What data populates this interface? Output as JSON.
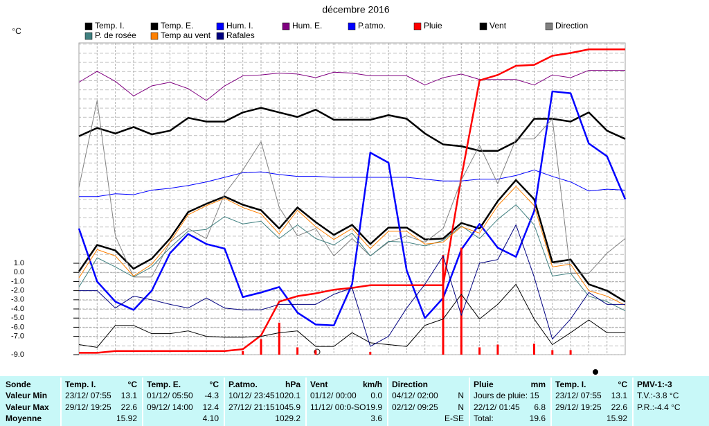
{
  "chart_data": {
    "type": "line",
    "title": "décembre 2016",
    "y_label": "°C",
    "categories": [
      null,
      null,
      null,
      null,
      null,
      null,
      null,
      null,
      null,
      null,
      null,
      null,
      null,
      null,
      null,
      null,
      null,
      null,
      null,
      null,
      null,
      null,
      null,
      null,
      null,
      null,
      null,
      null,
      null,
      null,
      null
    ],
    "ylim": [
      -9,
      25.1
    ],
    "yticks": [
      {
        "value": 1,
        "label": "1.0"
      },
      {
        "value": 0,
        "label": "0.0"
      },
      {
        "value": -1,
        "label": "-1.0"
      },
      {
        "value": -2,
        "label": "-2.0"
      },
      {
        "value": -3,
        "label": "-3.0"
      },
      {
        "value": -4,
        "label": "-4.0"
      },
      {
        "value": -5,
        "label": "-5.0"
      },
      {
        "value": -6,
        "label": "-6.0"
      },
      {
        "value": -7,
        "label": "-7.0"
      },
      {
        "value": -9,
        "label": "-9.0"
      }
    ],
    "grid": true,
    "series": [
      {
        "name": "Temp. I.",
        "color": "#000000",
        "values": [
          14.9,
          15.8,
          15.2,
          15.9,
          15.1,
          15.5,
          16.9,
          16.5,
          16.5,
          17.5,
          18.0,
          17.5,
          17.0,
          17.8,
          16.7,
          16.7,
          16.7,
          17.2,
          16.8,
          15.2,
          14.0,
          13.8,
          13.3,
          13.3,
          14.3,
          16.8,
          16.8,
          16.5,
          17.5,
          15.5,
          14.6
        ]
      },
      {
        "name": "Temp. E.",
        "color": "#000000",
        "values": [
          0.1,
          3.0,
          2.4,
          0.4,
          1.5,
          3.7,
          6.6,
          7.5,
          8.3,
          7.4,
          6.8,
          4.8,
          7.1,
          5.5,
          4.1,
          5.2,
          3.1,
          4.9,
          4.9,
          3.6,
          3.7,
          5.4,
          4.8,
          7.8,
          10.1,
          8.0,
          1.1,
          1.4,
          -1.3,
          -2.0,
          -3.2
        ]
      },
      {
        "name": "Hum. I.",
        "color": "#0000ff",
        "values": [
          8.3,
          8.3,
          8.6,
          8.5,
          9.0,
          9.2,
          9.5,
          9.9,
          10.4,
          10.9,
          11.0,
          10.7,
          10.5,
          10.5,
          10.4,
          10.4,
          10.4,
          10.4,
          10.4,
          10.2,
          10.0,
          10.0,
          10.2,
          10.2,
          10.6,
          11.2,
          10.5,
          9.9,
          8.9,
          9.1,
          9.0
        ]
      },
      {
        "name": "Hum. E.",
        "color": "#800080",
        "values": [
          20.8,
          22.0,
          20.9,
          19.3,
          20.4,
          20.8,
          20.1,
          18.8,
          20.4,
          21.5,
          21.6,
          21.8,
          21.7,
          21.3,
          21.9,
          21.8,
          21.5,
          21.5,
          21.5,
          20.5,
          21.3,
          21.7,
          21.1,
          21.1,
          21.1,
          20.5,
          21.6,
          21.3,
          22.1,
          22.1,
          22.1
        ]
      },
      {
        "name": "P.atmo.",
        "color": "#0000ff",
        "values": [
          4.8,
          -1.0,
          -3.2,
          -4.1,
          -2.0,
          2.1,
          4.2,
          3.1,
          2.6,
          -2.7,
          -2.2,
          -1.6,
          -4.4,
          -5.7,
          -5.8,
          -1.3,
          13.1,
          12.0,
          0.2,
          -5.0,
          -2.8,
          2.5,
          5.3,
          2.7,
          1.7,
          6.7,
          19.8,
          19.6,
          14.1,
          12.7,
          8.0
        ]
      },
      {
        "name": "Pluie",
        "color": "#ff0000",
        "values": [
          -8.8,
          -8.8,
          -8.6,
          -8.6,
          -8.6,
          -8.6,
          -8.6,
          -8.6,
          -8.6,
          -8.4,
          -6.9,
          -3.2,
          -2.6,
          -2.3,
          -1.9,
          -1.7,
          -1.4,
          -1.4,
          -1.4,
          -1.4,
          -1.4,
          10.4,
          21.0,
          21.6,
          22.6,
          22.7,
          23.7,
          24.0,
          24.4,
          24.4,
          24.4
        ],
        "bars": [
          null,
          null,
          null,
          null,
          null,
          null,
          null,
          null,
          null,
          -8.6,
          -7.3,
          -5.5,
          -8.2,
          -8.5,
          null,
          null,
          -8.7,
          null,
          null,
          null,
          1.9,
          2.7,
          -8.2,
          -7.9,
          null,
          -7.8,
          -8.5,
          -8.5,
          null,
          null,
          null
        ]
      },
      {
        "name": "Vent",
        "color": "#000000",
        "values": [
          -7.9,
          -8.2,
          -5.8,
          -5.8,
          -6.7,
          -6.7,
          -6.4,
          -7.0,
          -7.1,
          -7.1,
          -7.0,
          -6.6,
          -6.4,
          -8.1,
          -8.1,
          -6.6,
          -7.7,
          -7.9,
          -8.1,
          -5.8,
          -5.1,
          -2.4,
          -5.1,
          -3.5,
          -1.3,
          -5.1,
          -7.9,
          -6.6,
          -5.2,
          -6.6,
          -6.6
        ]
      },
      {
        "name": "Direction",
        "color": "#808080",
        "values": [
          9.3,
          18.8,
          4.0,
          -0.5,
          -0.5,
          3.3,
          4.8,
          3.7,
          8.6,
          11.2,
          14.3,
          7.1,
          4.0,
          4.8,
          1.8,
          3.7,
          1.8,
          3.3,
          4.0,
          3.3,
          4.8,
          10.1,
          13.9,
          9.7,
          14.6,
          14.6,
          16.8,
          -0.1,
          -0.1,
          2.1,
          3.7
        ]
      },
      {
        "name": "P. de rosée",
        "color": "#408080",
        "values": [
          -1.6,
          1.6,
          0.6,
          -0.5,
          0.6,
          2.7,
          4.5,
          4.7,
          6.1,
          5.3,
          5.6,
          3.7,
          5.2,
          3.7,
          3.0,
          4.3,
          1.8,
          3.4,
          3.3,
          2.9,
          3.5,
          5.1,
          3.7,
          5.8,
          7.4,
          5.2,
          -0.4,
          -0.1,
          -2.6,
          -3.2,
          -4.2
        ]
      },
      {
        "name": "Temp au vent",
        "color": "#ff8000",
        "values": [
          -0.6,
          2.5,
          1.8,
          -0.4,
          0.9,
          3.3,
          6.3,
          7.3,
          8.1,
          7.1,
          6.4,
          4.2,
          6.8,
          5.0,
          3.6,
          4.8,
          2.6,
          4.5,
          4.5,
          3.1,
          3.3,
          5.0,
          4.3,
          7.3,
          9.4,
          7.3,
          0.6,
          0.9,
          -2.0,
          -2.6,
          -3.6
        ]
      },
      {
        "name": "Rafales",
        "color": "#000080",
        "values": [
          -2.0,
          -2.0,
          -3.9,
          -2.6,
          -3.0,
          -3.5,
          -3.9,
          -2.8,
          -3.9,
          -4.1,
          -4.1,
          -3.5,
          -3.5,
          -3.5,
          -2.4,
          -1.7,
          -8.1,
          -7.0,
          -3.9,
          -1.3,
          1.8,
          -4.7,
          1.0,
          1.4,
          5.2,
          -0.5,
          -7.3,
          -5.1,
          -2.2,
          -3.5,
          -3.5
        ]
      }
    ]
  },
  "table": {
    "row_labels": [
      "Sonde",
      "Valeur Min",
      "Valeur Max",
      "Moyenne"
    ],
    "groups": [
      {
        "title": "Temp. I.",
        "unit": "°C",
        "rows": [
          {
            "left": "23/12/ 07:55",
            "right": "13.1"
          },
          {
            "left": "29/12/ 19:25",
            "right": "22.6"
          },
          {
            "right": "15.92"
          }
        ]
      },
      {
        "title": "Temp. E.",
        "unit": "°C",
        "rows": [
          {
            "left": "01/12/ 05:50",
            "right": "-4.3"
          },
          {
            "left": "09/12/ 14:00",
            "right": "12.4"
          },
          {
            "right": "4.10"
          }
        ]
      },
      {
        "title": "P.atmo.",
        "unit": "hPa",
        "rows": [
          {
            "left": "10/12/ 23:45",
            "right": "1020.1"
          },
          {
            "left": "27/12/ 21:15",
            "right": "1045.9"
          },
          {
            "right": "1029.2"
          }
        ]
      },
      {
        "title": "Vent",
        "unit": "km/h",
        "rows": [
          {
            "left": "01/12/ 00:00",
            "right": "0.0"
          },
          {
            "left": "11/12/ 00:0-SO",
            "right": "19.9"
          },
          {
            "right": "3.6"
          }
        ]
      },
      {
        "title": "Direction",
        "rows": [
          {
            "left": "04/12/ 02:00",
            "right": "N"
          },
          {
            "left": "02/12/ 09:25",
            "right": "N"
          },
          {
            "right": "E-SE"
          }
        ]
      },
      {
        "title": "Pluie",
        "unit": "mm",
        "rows": [
          {
            "left": "Jours de pluie: 15"
          },
          {
            "left": "22/12/ 01:45",
            "right": "6.8"
          },
          {
            "left": "Total:",
            "right": "19.6"
          }
        ]
      },
      {
        "title": "Temp. I.",
        "unit": "°C",
        "rows": [
          {
            "left": "23/12/ 07:55",
            "right": "13.1"
          },
          {
            "left": "29/12/ 19:25",
            "right": "22.6"
          },
          {
            "right": "15.92"
          }
        ]
      },
      {
        "title": "PMV-1:-3",
        "rows": [
          {
            "left": "T.V.:-3.8 °C"
          },
          {
            "left": "P.R.:-4.4 °C"
          }
        ]
      }
    ]
  }
}
